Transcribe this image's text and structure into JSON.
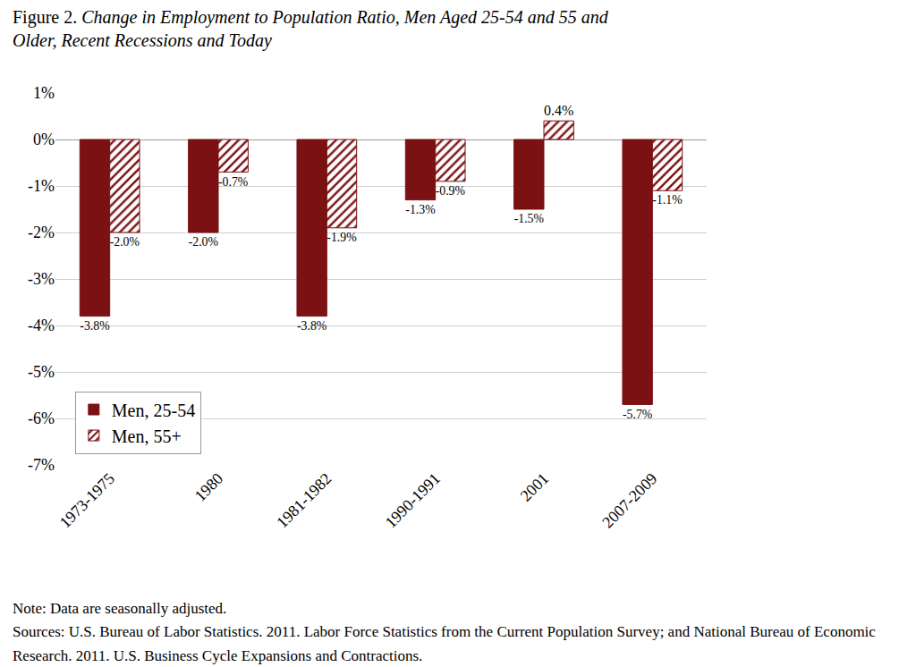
{
  "chart_data": {
    "type": "bar",
    "title": "Figure 2. Change in Employment to Population Ratio, Men Aged 25-54 and 55 and Older, Recent Recessions and Today",
    "categories": [
      "1973-1975",
      "1980",
      "1981-1982",
      "1990-1991",
      "2001",
      "2007-2009"
    ],
    "series": [
      {
        "name": "Men, 25-54",
        "color": "#7b1113",
        "marker": "solid",
        "values": [
          -3.8,
          -2.0,
          -3.8,
          -1.3,
          -1.5,
          -5.7
        ],
        "value_labels": [
          "-3.8%",
          "-2.0%",
          "-3.8%",
          "-1.3%",
          "-1.5%",
          "-5.7%"
        ]
      },
      {
        "name": "Men, 55+",
        "color": "#7b1113",
        "marker": "hatched",
        "values": [
          -2.0,
          -0.7,
          -1.9,
          -0.9,
          0.4,
          -1.1
        ],
        "value_labels": [
          "-2.0%",
          "-0.7%",
          "-1.9%",
          "-0.9%",
          "0.4%",
          "-1.1%"
        ]
      }
    ],
    "ylim": [
      -7,
      1
    ],
    "yticks": [
      {
        "value": 1,
        "label": "1%"
      },
      {
        "value": 0,
        "label": "0%"
      },
      {
        "value": -1,
        "label": "-1%"
      },
      {
        "value": -2,
        "label": "-2%"
      },
      {
        "value": -3,
        "label": "-3%"
      },
      {
        "value": -4,
        "label": "-4%"
      },
      {
        "value": -5,
        "label": "-5%"
      },
      {
        "value": -6,
        "label": "-6%"
      },
      {
        "value": -7,
        "label": "-7%"
      }
    ],
    "grid": true,
    "legend": "lower left",
    "data_labels": true,
    "notes": [
      "Note: Data are seasonally adjusted.",
      "Sources: U.S. Bureau of Labor Statistics. 2011. Labor Force Statistics from the Current Population Survey; and National Bureau of Economic Research. 2011. U.S. Business Cycle Expansions and Contractions."
    ]
  }
}
